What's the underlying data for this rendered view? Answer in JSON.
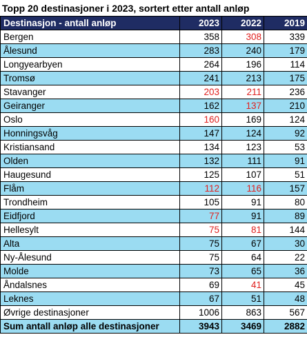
{
  "title": "Topp 20 destinasjoner i 2023, sortert etter antall anløp",
  "colors": {
    "header_bg": "#1f2c63",
    "header_text": "#ffffff",
    "band": "#9bdcf2",
    "highlight": "#e0201e"
  },
  "columns": [
    "Destinasjon - antall anløp",
    "2023",
    "2022",
    "2019"
  ],
  "rows": [
    {
      "name": "Bergen",
      "values": [
        "358",
        "308",
        "339"
      ],
      "highlight": [
        false,
        true,
        false
      ]
    },
    {
      "name": "Ålesund",
      "values": [
        "283",
        "240",
        "179"
      ],
      "highlight": [
        false,
        false,
        false
      ]
    },
    {
      "name": "Longyearbyen",
      "values": [
        "264",
        "196",
        "114"
      ],
      "highlight": [
        false,
        false,
        false
      ]
    },
    {
      "name": "Tromsø",
      "values": [
        "241",
        "213",
        "175"
      ],
      "highlight": [
        false,
        false,
        false
      ]
    },
    {
      "name": "Stavanger",
      "values": [
        "203",
        "211",
        "236"
      ],
      "highlight": [
        true,
        true,
        false
      ]
    },
    {
      "name": "Geiranger",
      "values": [
        "162",
        "137",
        "210"
      ],
      "highlight": [
        false,
        true,
        false
      ]
    },
    {
      "name": "Oslo",
      "values": [
        "160",
        "169",
        "124"
      ],
      "highlight": [
        true,
        false,
        false
      ]
    },
    {
      "name": "Honningsvåg",
      "values": [
        "147",
        "124",
        "92"
      ],
      "highlight": [
        false,
        false,
        false
      ]
    },
    {
      "name": "Kristiansand",
      "values": [
        "134",
        "123",
        "53"
      ],
      "highlight": [
        false,
        false,
        false
      ]
    },
    {
      "name": "Olden",
      "values": [
        "132",
        "111",
        "91"
      ],
      "highlight": [
        false,
        false,
        false
      ]
    },
    {
      "name": "Haugesund",
      "values": [
        "125",
        "107",
        "51"
      ],
      "highlight": [
        false,
        false,
        false
      ]
    },
    {
      "name": "Flåm",
      "values": [
        "112",
        "116",
        "157"
      ],
      "highlight": [
        true,
        true,
        false
      ]
    },
    {
      "name": "Trondheim",
      "values": [
        "105",
        "91",
        "80"
      ],
      "highlight": [
        false,
        false,
        false
      ]
    },
    {
      "name": "Eidfjord",
      "values": [
        "77",
        "91",
        "89"
      ],
      "highlight": [
        true,
        false,
        false
      ]
    },
    {
      "name": "Hellesylt",
      "values": [
        "75",
        "81",
        "144"
      ],
      "highlight": [
        true,
        true,
        false
      ]
    },
    {
      "name": "Alta",
      "values": [
        "75",
        "67",
        "30"
      ],
      "highlight": [
        false,
        false,
        false
      ]
    },
    {
      "name": "Ny-Ålesund",
      "values": [
        "75",
        "64",
        "22"
      ],
      "highlight": [
        false,
        false,
        false
      ]
    },
    {
      "name": "Molde",
      "values": [
        "73",
        "65",
        "36"
      ],
      "highlight": [
        false,
        false,
        false
      ]
    },
    {
      "name": "Åndalsnes",
      "values": [
        "69",
        "41",
        "45"
      ],
      "highlight": [
        false,
        true,
        false
      ]
    },
    {
      "name": "Leknes",
      "values": [
        "67",
        "51",
        "48"
      ],
      "highlight": [
        false,
        false,
        false
      ]
    },
    {
      "name": "Øvrige destinasjoner",
      "values": [
        "1006",
        "863",
        "567"
      ],
      "highlight": [
        false,
        false,
        false
      ]
    }
  ],
  "total": {
    "label": "Sum antall anløp alle destinasjoner",
    "values": [
      "3943",
      "3469",
      "2882"
    ]
  }
}
